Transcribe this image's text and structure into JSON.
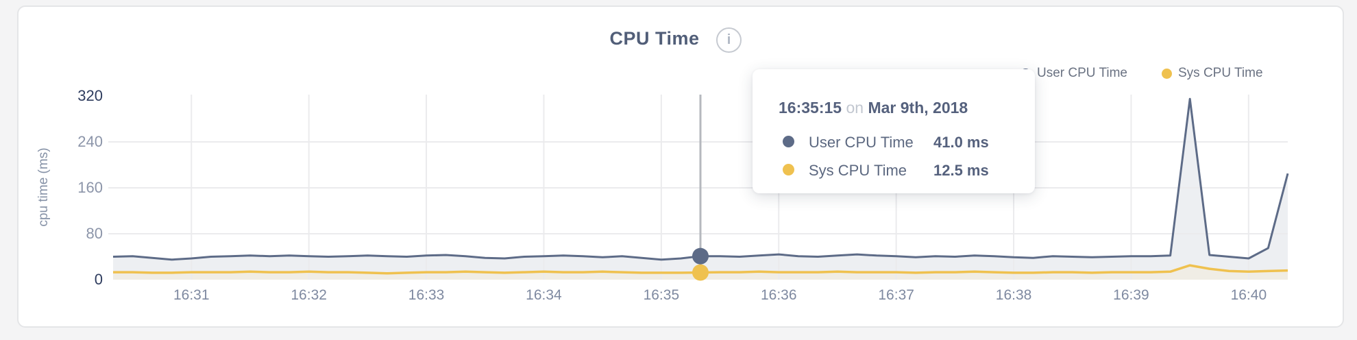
{
  "chart": {
    "title": "CPU Time",
    "info_glyph": "i",
    "y_axis": {
      "label": "cpu time (ms)",
      "ticks": [
        0,
        80,
        160,
        240,
        320
      ],
      "emphasized_ticks": [
        0,
        320
      ]
    },
    "x_axis": {
      "ticks": [
        "16:31",
        "16:32",
        "16:33",
        "16:34",
        "16:35",
        "16:36",
        "16:37",
        "16:38",
        "16:39",
        "16:40"
      ]
    },
    "legend": [
      {
        "label": "User CPU Time",
        "color": "#5d6b87"
      },
      {
        "label": "Sys CPU Time",
        "color": "#efc14f"
      }
    ]
  },
  "chart_data": {
    "type": "line",
    "title": "CPU Time",
    "ylabel": "cpu time (ms)",
    "ylim": [
      0,
      320
    ],
    "x_tick_labels": [
      "16:31",
      "16:32",
      "16:33",
      "16:34",
      "16:35",
      "16:36",
      "16:37",
      "16:38",
      "16:39",
      "16:40"
    ],
    "start_time": "16:30:20",
    "interval_seconds": 10,
    "grid": true,
    "legend_position": "top-right",
    "series": [
      {
        "name": "User CPU Time",
        "color": "#5d6b87",
        "fill": "#edeff2",
        "values": [
          40,
          41,
          38,
          35,
          37,
          40,
          41,
          42,
          41,
          42,
          41,
          40,
          41,
          42,
          41,
          40,
          42,
          43,
          41,
          38,
          37,
          40,
          41,
          42,
          41,
          39,
          41,
          38,
          35,
          37,
          41,
          41,
          40,
          42,
          44,
          41,
          40,
          42,
          44,
          42,
          41,
          39,
          41,
          40,
          42,
          41,
          39,
          38,
          41,
          40,
          39,
          40,
          41,
          41,
          42,
          315,
          43,
          40,
          37,
          55,
          185
        ]
      },
      {
        "name": "Sys CPU Time",
        "color": "#efc14f",
        "fill": "#f0ede5",
        "values": [
          13,
          13,
          12,
          12,
          13,
          13,
          13,
          14,
          13,
          13,
          14,
          13,
          13,
          12,
          11,
          12,
          13,
          13,
          14,
          13,
          12,
          13,
          14,
          13,
          13,
          14,
          13,
          12,
          12,
          12,
          12.5,
          13,
          13,
          14,
          13,
          13,
          13,
          14,
          13,
          13,
          13,
          12,
          13,
          13,
          14,
          13,
          12,
          12,
          13,
          13,
          12,
          13,
          13,
          13,
          14,
          25,
          19,
          15,
          14,
          15,
          16
        ]
      }
    ],
    "hover_index": 30
  },
  "tooltip": {
    "time": "16:35:15",
    "on_word": "on",
    "date": "Mar 9th, 2018",
    "rows": [
      {
        "label": "User CPU Time",
        "value": "41.0 ms",
        "color": "#5d6b87"
      },
      {
        "label": "Sys CPU Time",
        "value": "12.5 ms",
        "color": "#efc14f"
      }
    ]
  },
  "colors": {
    "page_bg": "#f4f4f5",
    "card_border": "#e4e5e7",
    "grid": "#ebebed",
    "crosshair": "#b5b8be",
    "y_tick_emphasized": "#2e3c5e",
    "y_tick_normal": "#8c95a9",
    "x_tick": "#7e89a0"
  }
}
